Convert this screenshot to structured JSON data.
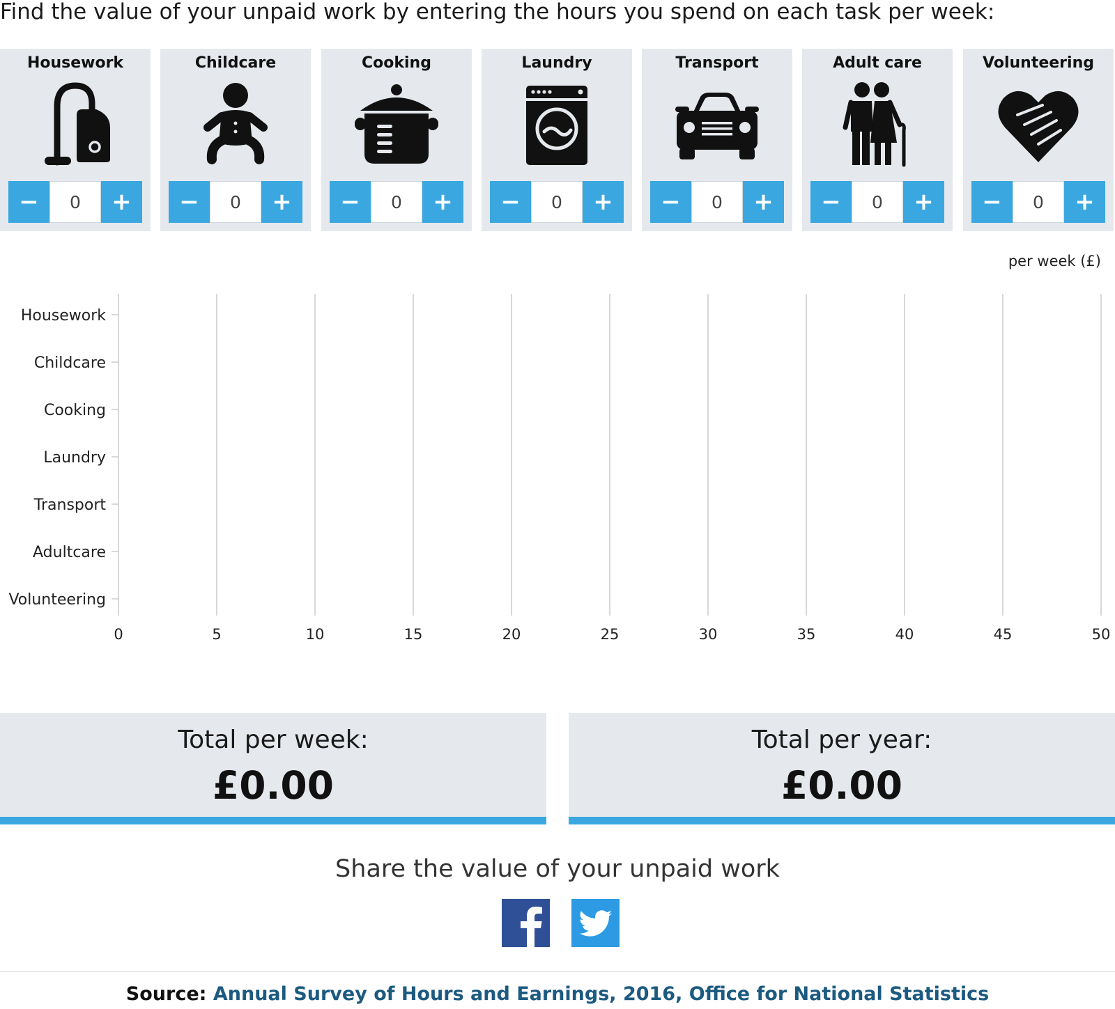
{
  "intro": "Find the value of your unpaid work by entering the hours you spend on each task per week:",
  "stepper": {
    "minus_label": "−",
    "plus_label": "+"
  },
  "tasks": [
    {
      "label": "Housework",
      "icon": "vacuum-cleaner-icon",
      "value": "0"
    },
    {
      "label": "Childcare",
      "icon": "baby-icon",
      "value": "0"
    },
    {
      "label": "Cooking",
      "icon": "cooking-pot-icon",
      "value": "0"
    },
    {
      "label": "Laundry",
      "icon": "washing-machine-icon",
      "value": "0"
    },
    {
      "label": "Transport",
      "icon": "car-icon",
      "value": "0"
    },
    {
      "label": "Adult care",
      "icon": "elderly-couple-icon",
      "value": "0"
    },
    {
      "label": "Volunteering",
      "icon": "heart-handshake-icon",
      "value": "0"
    }
  ],
  "chart_data": {
    "type": "bar",
    "orientation": "horizontal",
    "unit_label": "per week (£)",
    "categories": [
      "Housework",
      "Childcare",
      "Cooking",
      "Laundry",
      "Transport",
      "Adultcare",
      "Volunteering"
    ],
    "values": [
      0,
      0,
      0,
      0,
      0,
      0,
      0
    ],
    "xlim": [
      0,
      50
    ],
    "xticks": [
      "0",
      "5",
      "10",
      "15",
      "20",
      "25",
      "30",
      "35",
      "40",
      "45",
      "50"
    ],
    "grid": true,
    "bar_color": "#3aa7e0"
  },
  "totals": {
    "week_label": "Total per week:",
    "week_value": "£0.00",
    "year_label": "Total per year:",
    "year_value": "£0.00"
  },
  "share": {
    "title": "Share the value of your unpaid work",
    "facebook": "f"
  },
  "source": {
    "label": "Source:",
    "link": "Annual Survey of Hours and Earnings, 2016, Office for National Statistics"
  },
  "colors": {
    "accent": "#3aa7e0",
    "card_bg": "#e5e9ed",
    "facebook": "#2f4f96",
    "twitter": "#2c9be3",
    "source_link": "#1c5a80"
  }
}
